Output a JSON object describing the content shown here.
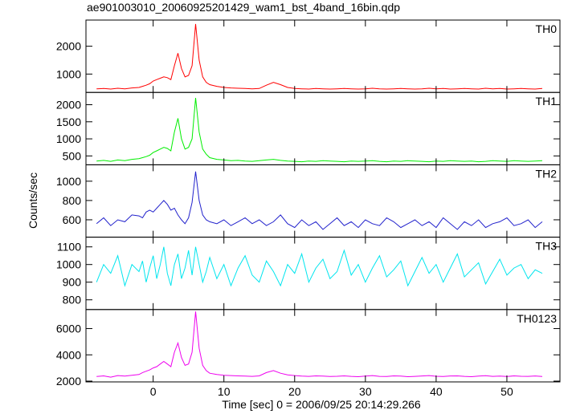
{
  "chart_data": {
    "type": "line",
    "title": "ae901003010_20060925201429_wam1_bst_4band_16bin.qdp",
    "xlabel": "Time [sec] 0 = 2006/09/25 20:14:29.266",
    "ylabel": "Counts/sec",
    "x": [
      -8,
      -7,
      -6,
      -5,
      -4,
      -3,
      -2,
      -1.5,
      -1,
      -0.5,
      0,
      0.5,
      1,
      1.5,
      2,
      2.5,
      3,
      3.5,
      4,
      4.5,
      5,
      5.5,
      6,
      6.5,
      7,
      7.5,
      8,
      9,
      10,
      11,
      12,
      13,
      14,
      15,
      16,
      17,
      18,
      19,
      20,
      21,
      22,
      23,
      24,
      25,
      26,
      27,
      28,
      29,
      30,
      31,
      32,
      33,
      34,
      35,
      36,
      37,
      38,
      39,
      40,
      41,
      42,
      43,
      44,
      45,
      46,
      47,
      48,
      49,
      50,
      51,
      52,
      53,
      54,
      55
    ],
    "xlim": [
      -9.5,
      57.5
    ],
    "xticks": [
      0,
      10,
      20,
      30,
      40,
      50
    ],
    "series": [
      {
        "name": "TH0",
        "color": "#ff0000",
        "ylim": [
          340,
          2940
        ],
        "yticks": [
          1000,
          2000
        ],
        "values": [
          470,
          480,
          460,
          490,
          470,
          500,
          520,
          560,
          600,
          650,
          750,
          800,
          850,
          900,
          870,
          800,
          1300,
          1750,
          1200,
          900,
          950,
          1300,
          2800,
          1500,
          900,
          700,
          620,
          560,
          520,
          500,
          490,
          480,
          470,
          480,
          600,
          700,
          620,
          520,
          480,
          470,
          460,
          480,
          470,
          460,
          470,
          480,
          470,
          460,
          470,
          490,
          470,
          460,
          470,
          480,
          470,
          460,
          470,
          490,
          470,
          480,
          460,
          470,
          480,
          470,
          460,
          490,
          470,
          480,
          460,
          470,
          480,
          470,
          460,
          480
        ]
      },
      {
        "name": "TH1",
        "color": "#00ee00",
        "ylim": [
          240,
          2360
        ],
        "yticks": [
          500,
          1000,
          1500,
          2000
        ],
        "values": [
          350,
          370,
          340,
          380,
          360,
          400,
          420,
          450,
          480,
          520,
          600,
          650,
          700,
          750,
          720,
          650,
          1200,
          1600,
          1000,
          700,
          750,
          1000,
          2200,
          1200,
          700,
          550,
          450,
          400,
          380,
          360,
          370,
          350,
          340,
          360,
          380,
          400,
          370,
          350,
          340,
          330,
          350,
          340,
          360,
          350,
          340,
          330,
          350,
          340,
          350,
          360,
          340,
          330,
          350,
          340,
          360,
          350,
          340,
          330,
          350,
          340,
          360,
          350,
          340,
          350,
          330,
          340,
          360,
          350,
          340,
          360,
          350,
          340,
          350,
          360
        ]
      },
      {
        "name": "TH2",
        "color": "#2222cc",
        "ylim": [
          420,
          1170
        ],
        "yticks": [
          600,
          800,
          1000
        ],
        "values": [
          560,
          620,
          540,
          600,
          580,
          650,
          640,
          620,
          680,
          700,
          680,
          720,
          760,
          800,
          760,
          700,
          720,
          650,
          600,
          560,
          620,
          780,
          1100,
          800,
          650,
          600,
          580,
          560,
          600,
          540,
          580,
          620,
          560,
          600,
          540,
          580,
          650,
          560,
          520,
          600,
          540,
          580,
          500,
          560,
          620,
          540,
          580,
          520,
          600,
          560,
          540,
          620,
          580,
          520,
          560,
          600,
          540,
          580,
          520,
          620,
          560,
          500,
          580,
          540,
          600,
          520,
          560,
          580,
          620,
          540,
          560,
          600,
          520,
          580
        ]
      },
      {
        "name": "TH3",
        "color": "#00e5ee",
        "ylim": [
          745,
          1155
        ],
        "yticks": [
          800,
          900,
          1000,
          1100
        ],
        "values": [
          900,
          1000,
          950,
          1050,
          880,
          1000,
          960,
          1020,
          900,
          980,
          1050,
          920,
          1000,
          1100,
          950,
          880,
          1000,
          1060,
          920,
          980,
          1080,
          940,
          1100,
          1000,
          900,
          960,
          1040,
          920,
          1000,
          880,
          980,
          1050,
          940,
          900,
          1020,
          960,
          880,
          1000,
          950,
          1060,
          900,
          980,
          1030,
          920,
          960,
          1080,
          940,
          1000,
          900,
          980,
          1050,
          930,
          970,
          1020,
          880,
          960,
          1040,
          950,
          1000,
          900,
          980,
          1060,
          930,
          970,
          1010,
          890,
          960,
          1030,
          940,
          980,
          1000,
          920,
          970,
          950
        ]
      },
      {
        "name": "TH0123",
        "color": "#ee00ee",
        "ylim": [
          1940,
          7450
        ],
        "yticks": [
          2000,
          4000,
          6000
        ],
        "values": [
          2350,
          2400,
          2300,
          2420,
          2380,
          2450,
          2500,
          2650,
          2750,
          2850,
          3000,
          3100,
          3300,
          3500,
          3300,
          3100,
          4200,
          4900,
          3800,
          3200,
          3300,
          4200,
          7300,
          4500,
          3200,
          2800,
          2600,
          2500,
          2450,
          2420,
          2400,
          2380,
          2360,
          2400,
          2650,
          2800,
          2600,
          2480,
          2420,
          2380,
          2360,
          2400,
          2380,
          2350,
          2370,
          2400,
          2360,
          2340,
          2380,
          2420,
          2360,
          2350,
          2400,
          2380,
          2340,
          2360,
          2390,
          2420,
          2370,
          2350,
          2390,
          2400,
          2360,
          2340,
          2380,
          2410,
          2360,
          2380,
          2350,
          2400,
          2370,
          2360,
          2390,
          2350
        ]
      }
    ]
  }
}
